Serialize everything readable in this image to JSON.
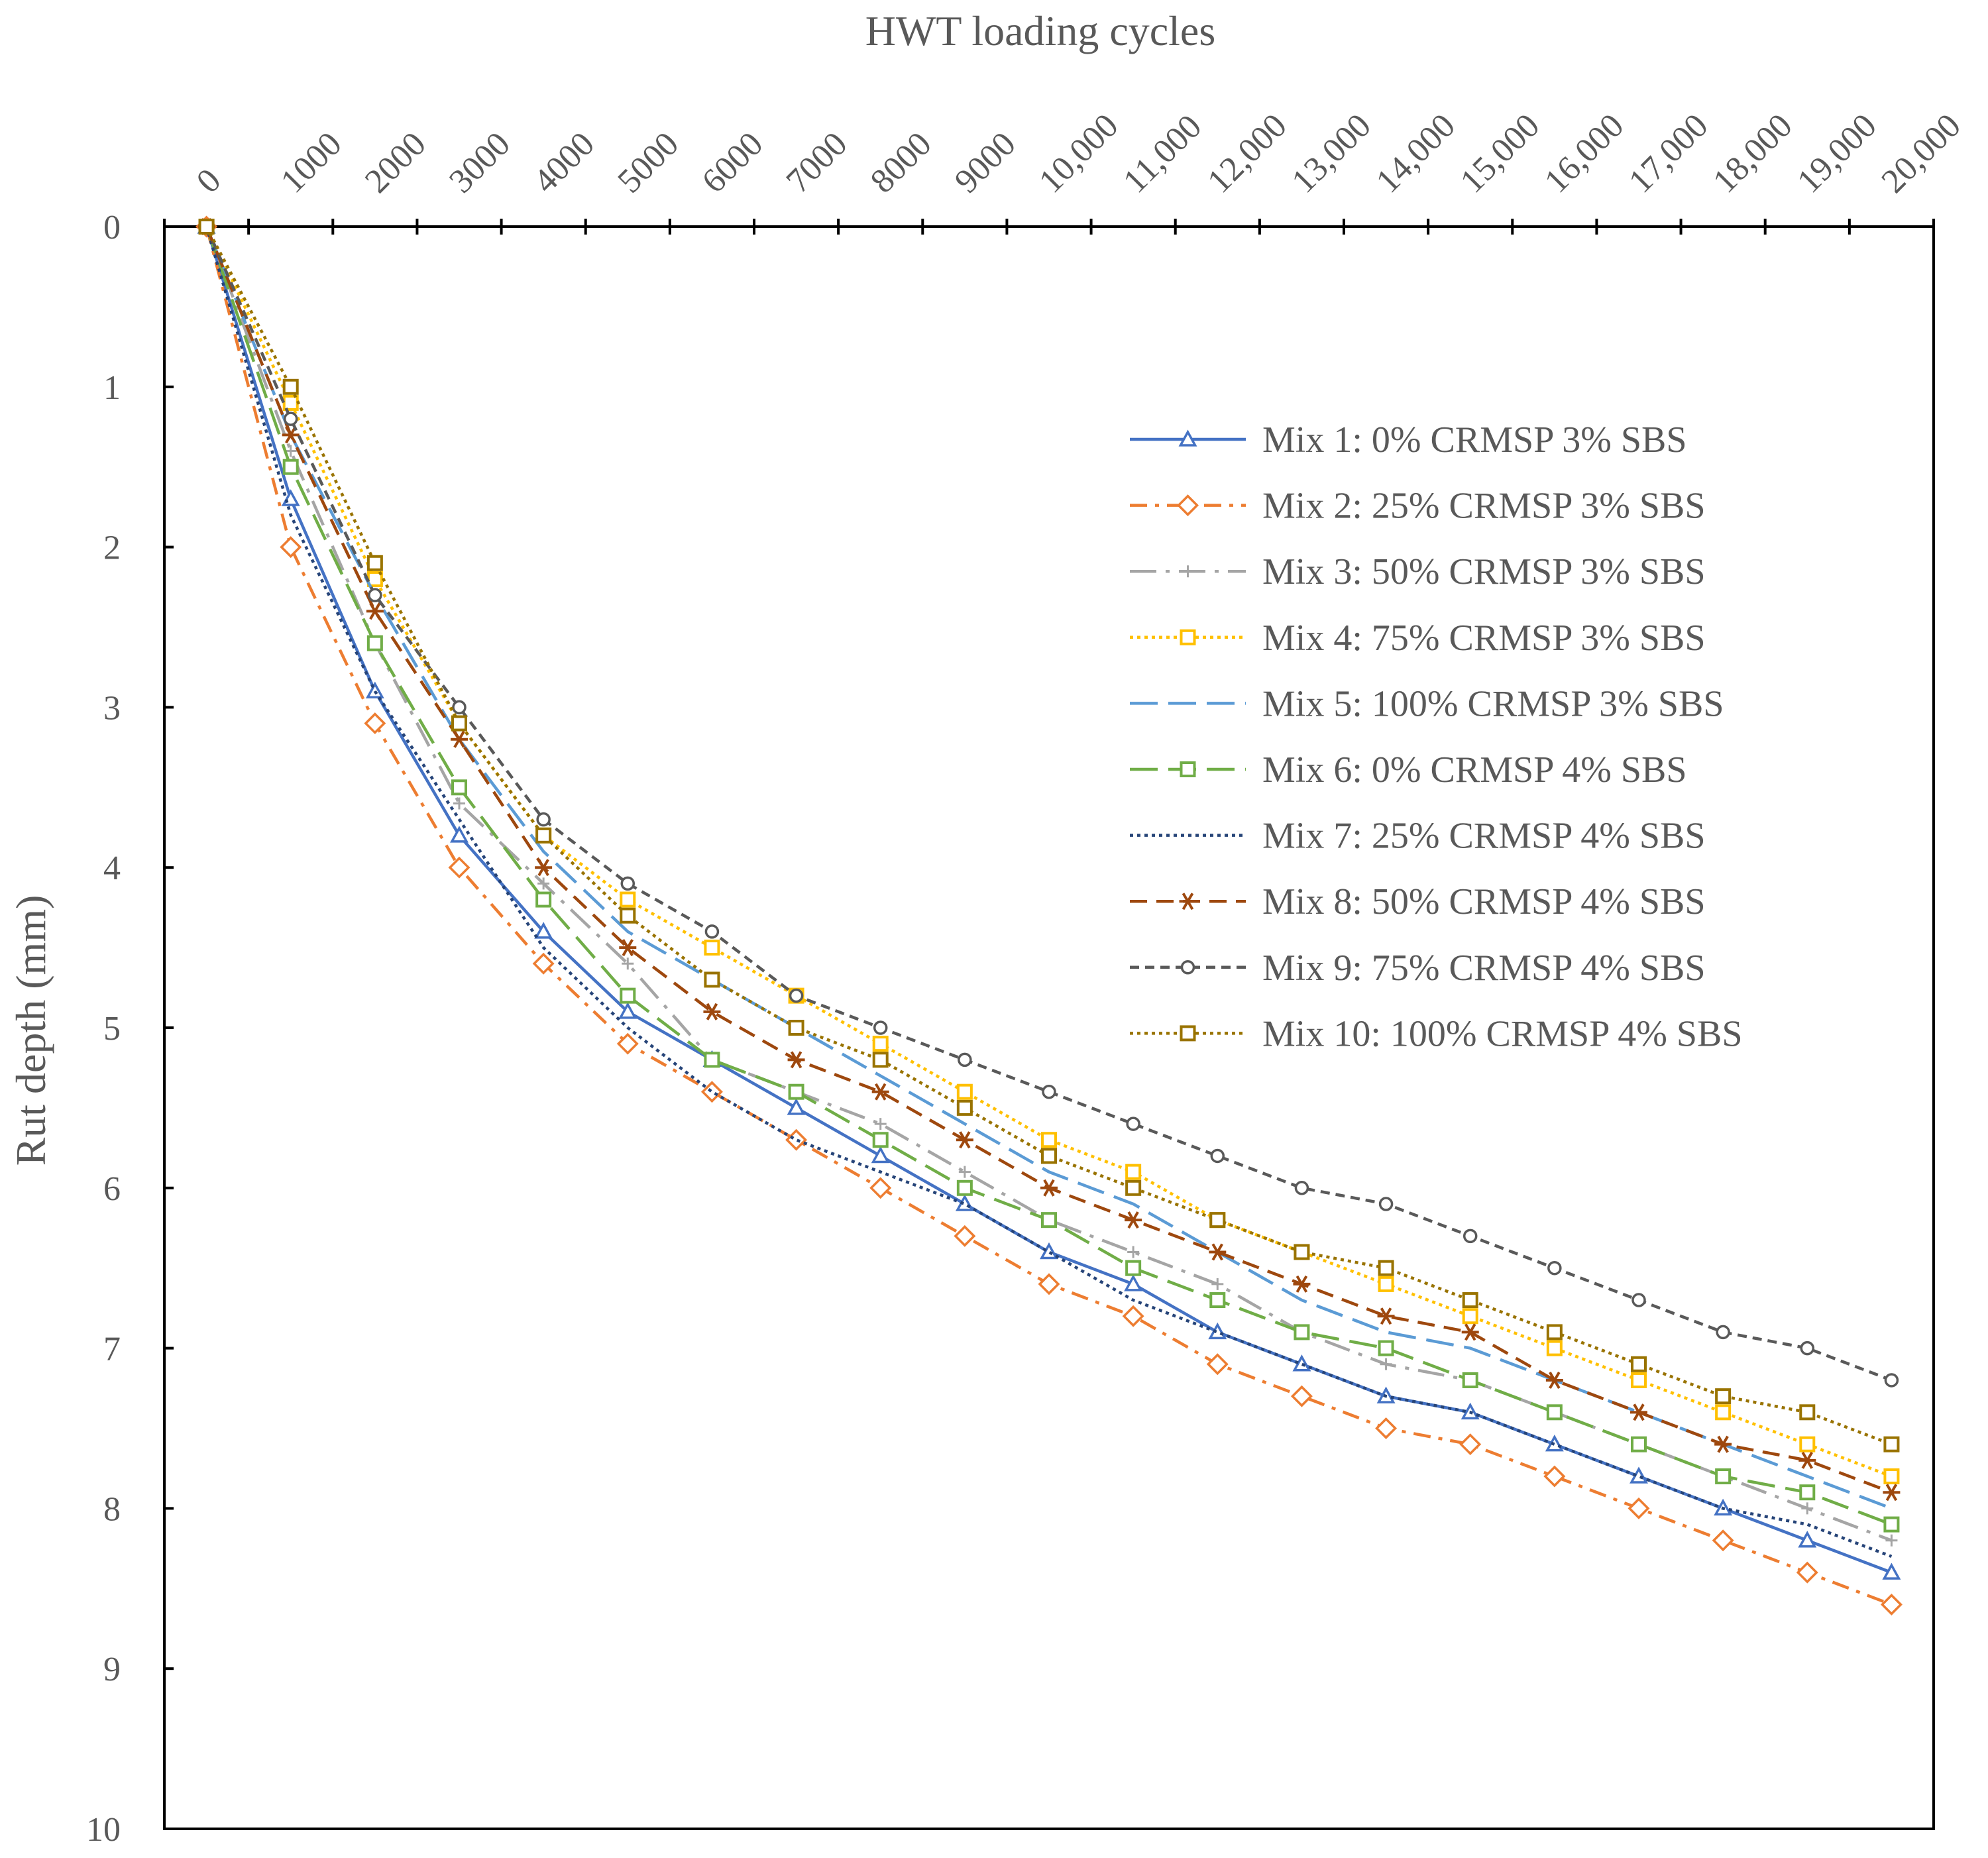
{
  "chart_data": {
    "type": "line",
    "title": "HWT loading cycles",
    "xlabel": "HWT loading cycles",
    "ylabel": "Rut depth (mm)",
    "x_tick_labels": [
      "0",
      "1000",
      "2000",
      "3000",
      "4000",
      "5000",
      "6000",
      "7000",
      "8000",
      "9000",
      "10,000",
      "11,000",
      "12,000",
      "13,000",
      "14,000",
      "15,000",
      "16,000",
      "17,000",
      "18,000",
      "19,000",
      "20,000"
    ],
    "y_tick_labels": [
      "0",
      "1",
      "2",
      "3",
      "4",
      "5",
      "6",
      "7",
      "8",
      "9",
      "10"
    ],
    "ylim": [
      0,
      10
    ],
    "y_inverted": true,
    "x_axis_position": "top",
    "legend_position": "right",
    "x": [
      0,
      1000,
      2000,
      3000,
      4000,
      5000,
      6000,
      7000,
      8000,
      9000,
      10000,
      11000,
      12000,
      13000,
      14000,
      15000,
      16000,
      17000,
      18000,
      19000,
      20000
    ],
    "series": [
      {
        "name": "Mix 1: 0% CRMSP 3% SBS",
        "color": "#4472C4",
        "marker": "triangle",
        "dash": "solid",
        "values": [
          0,
          1.7,
          2.9,
          3.8,
          4.4,
          4.9,
          5.2,
          5.5,
          5.8,
          6.1,
          6.4,
          6.6,
          6.9,
          7.1,
          7.3,
          7.4,
          7.6,
          7.8,
          8.0,
          8.2,
          8.4
        ]
      },
      {
        "name": "Mix 2: 25% CRMSP 3% SBS",
        "color": "#ED7D31",
        "marker": "diamond",
        "dash": "dashdot",
        "values": [
          0,
          2.0,
          3.1,
          4.0,
          4.6,
          5.1,
          5.4,
          5.7,
          6.0,
          6.3,
          6.6,
          6.8,
          7.1,
          7.3,
          7.5,
          7.6,
          7.8,
          8.0,
          8.2,
          8.4,
          8.6
        ]
      },
      {
        "name": "Mix 3: 50% CRMSP 3% SBS",
        "color": "#A5A5A5",
        "marker": "plus",
        "dash": "longdashdot",
        "values": [
          0,
          1.4,
          2.6,
          3.6,
          4.1,
          4.6,
          5.2,
          5.4,
          5.6,
          5.9,
          6.2,
          6.4,
          6.6,
          6.9,
          7.1,
          7.2,
          7.4,
          7.6,
          7.8,
          8.0,
          8.2
        ]
      },
      {
        "name": "Mix 4: 75% CRMSP 3% SBS",
        "color": "#FFC000",
        "marker": "square",
        "dash": "dot",
        "values": [
          0,
          1.1,
          2.2,
          3.1,
          3.8,
          4.2,
          4.5,
          4.8,
          5.1,
          5.4,
          5.7,
          5.9,
          6.2,
          6.4,
          6.6,
          6.8,
          7.0,
          7.2,
          7.4,
          7.6,
          7.8
        ]
      },
      {
        "name": "Mix 5: 100% CRMSP 3% SBS",
        "color": "#5B9BD5",
        "marker": "none",
        "dash": "longdash",
        "values": [
          0,
          1.3,
          2.3,
          3.2,
          3.9,
          4.4,
          4.7,
          5.0,
          5.3,
          5.6,
          5.9,
          6.1,
          6.4,
          6.7,
          6.9,
          7.0,
          7.2,
          7.4,
          7.6,
          7.8,
          8.0
        ]
      },
      {
        "name": "Mix 6: 0% CRMSP 4% SBS",
        "color": "#70AD47",
        "marker": "square",
        "dash": "longdash",
        "values": [
          0,
          1.5,
          2.6,
          3.5,
          4.2,
          4.8,
          5.2,
          5.4,
          5.7,
          6.0,
          6.2,
          6.5,
          6.7,
          6.9,
          7.0,
          7.2,
          7.4,
          7.6,
          7.8,
          7.9,
          8.1
        ]
      },
      {
        "name": "Mix 7: 25% CRMSP 4% SBS",
        "color": "#264478",
        "marker": "none",
        "dash": "dot",
        "values": [
          0,
          1.8,
          2.9,
          3.7,
          4.5,
          5.0,
          5.4,
          5.7,
          5.9,
          6.1,
          6.4,
          6.7,
          6.9,
          7.1,
          7.3,
          7.4,
          7.6,
          7.8,
          8.0,
          8.1,
          8.3
        ]
      },
      {
        "name": "Mix 8: 50% CRMSP 4% SBS",
        "color": "#9E480E",
        "marker": "star",
        "dash": "dash",
        "values": [
          0,
          1.3,
          2.4,
          3.2,
          4.0,
          4.5,
          4.9,
          5.2,
          5.4,
          5.7,
          6.0,
          6.2,
          6.4,
          6.6,
          6.8,
          6.9,
          7.2,
          7.4,
          7.6,
          7.7,
          7.9
        ]
      },
      {
        "name": "Mix 9: 75% CRMSP 4% SBS",
        "color": "#595959",
        "marker": "circle",
        "dash": "shortdash",
        "values": [
          0,
          1.2,
          2.3,
          3.0,
          3.7,
          4.1,
          4.4,
          4.8,
          5.0,
          5.2,
          5.4,
          5.6,
          5.8,
          6.0,
          6.1,
          6.3,
          6.5,
          6.7,
          6.9,
          7.0,
          7.2
        ]
      },
      {
        "name": "Mix 10: 100% CRMSP 4% SBS",
        "color": "#997300",
        "marker": "square",
        "dash": "dot",
        "values": [
          0,
          1.0,
          2.1,
          3.1,
          3.8,
          4.3,
          4.7,
          5.0,
          5.2,
          5.5,
          5.8,
          6.0,
          6.2,
          6.4,
          6.5,
          6.7,
          6.9,
          7.1,
          7.3,
          7.4,
          7.6
        ]
      }
    ]
  }
}
